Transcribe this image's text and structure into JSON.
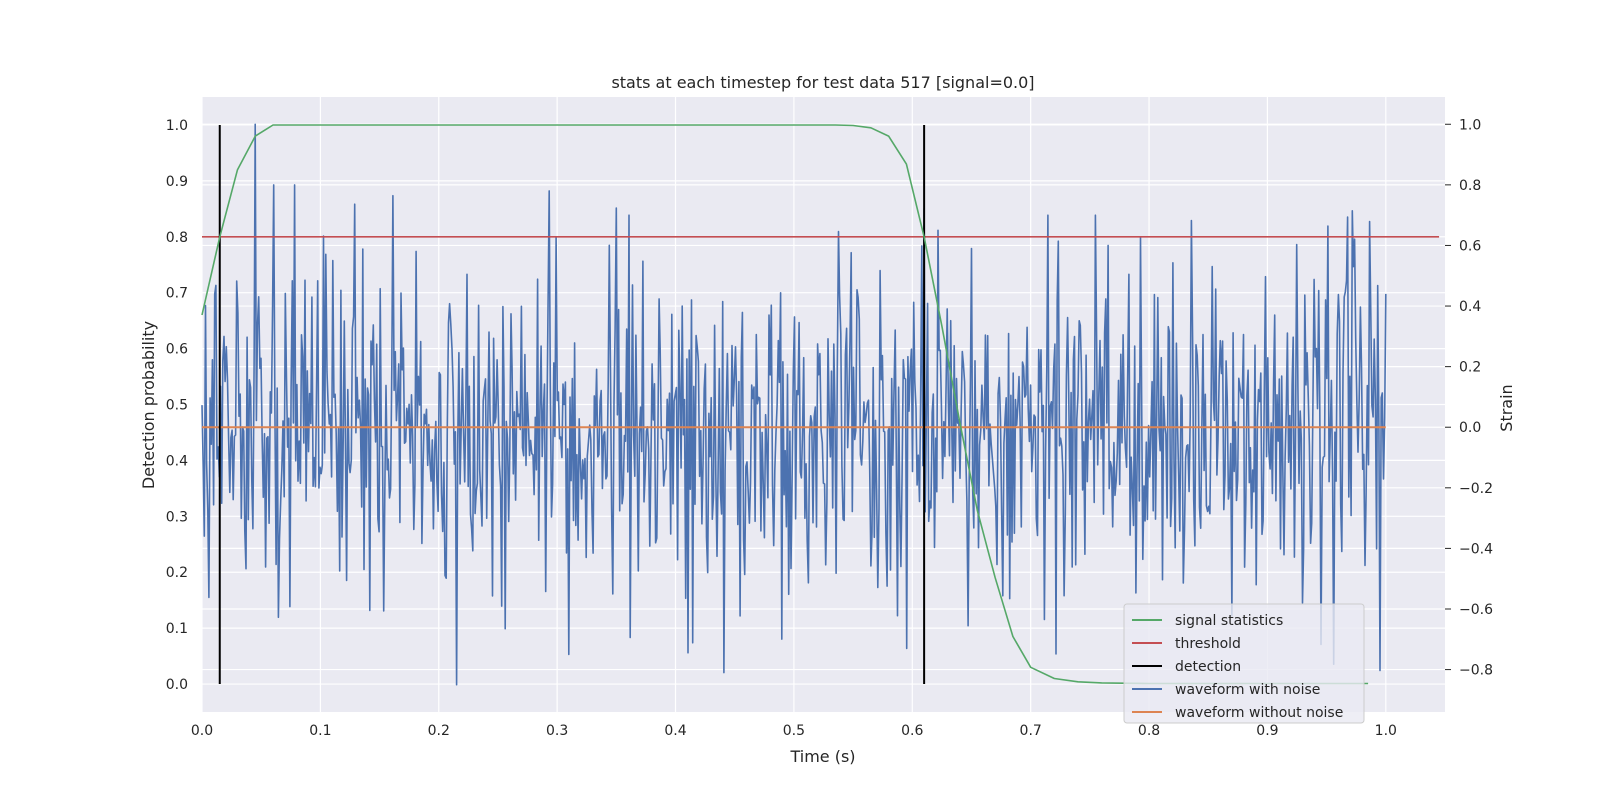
{
  "chart_data": {
    "type": "line",
    "title": "stats at each timestep for test data 517 [signal=0.0]",
    "xlabel": "Time (s)",
    "ylabel": "Detection probability",
    "ylabel_right": "Strain",
    "xlim": [
      0.0,
      1.05
    ],
    "ylim": [
      -0.05,
      1.05
    ],
    "ylim_right": [
      -0.94,
      1.09
    ],
    "xticks": [
      "0.0",
      "0.1",
      "0.2",
      "0.3",
      "0.4",
      "0.5",
      "0.6",
      "0.7",
      "0.8",
      "0.9",
      "1.0"
    ],
    "yticks": [
      "0.0",
      "0.1",
      "0.2",
      "0.3",
      "0.4",
      "0.5",
      "0.6",
      "0.7",
      "0.8",
      "0.9",
      "1.0"
    ],
    "yticks_right": [
      "−0.8",
      "−0.6",
      "−0.4",
      "−0.2",
      "0.0",
      "0.2",
      "0.4",
      "0.6",
      "0.8",
      "1.0"
    ],
    "grid": true,
    "legend_position": "lower-right",
    "series": [
      {
        "name": "signal statistics",
        "color": "#55a868",
        "axis": "left",
        "x": [
          0.0,
          0.015,
          0.03,
          0.045,
          0.06,
          0.075,
          0.1,
          0.2,
          0.3,
          0.4,
          0.5,
          0.535,
          0.55,
          0.565,
          0.58,
          0.595,
          0.61,
          0.625,
          0.64,
          0.655,
          0.67,
          0.685,
          0.7,
          0.72,
          0.74,
          0.76,
          0.8,
          0.9,
          0.985
        ],
        "y": [
          0.66,
          0.8,
          0.92,
          0.98,
          1.0,
          1.0,
          1.0,
          1.0,
          1.0,
          1.0,
          1.0,
          1.0,
          0.999,
          0.995,
          0.98,
          0.93,
          0.8,
          0.64,
          0.47,
          0.31,
          0.19,
          0.085,
          0.03,
          0.01,
          0.004,
          0.002,
          0.001,
          0.001,
          0.001
        ]
      },
      {
        "name": "threshold",
        "color": "#c44e52",
        "axis": "left",
        "x": [
          0.0,
          1.045
        ],
        "y": [
          0.8,
          0.8
        ]
      },
      {
        "name": "detection",
        "color": "#000000",
        "axis": "left",
        "x": [
          0.015,
          0.61
        ],
        "y_range": [
          0.0,
          1.0
        ]
      },
      {
        "name": "waveform with noise",
        "color": "#4c72b0",
        "axis": "right",
        "x_range": [
          0.0,
          1.0
        ],
        "points": 1024,
        "amplitude": 0.27,
        "samples": [
          {
            "x": 0.045,
            "y": 1.0
          },
          {
            "x": 0.061,
            "y": 0.8
          },
          {
            "x": 0.078,
            "y": 0.8
          },
          {
            "x": 0.11,
            "y": 0.55
          },
          {
            "x": 0.215,
            "y": -0.85
          },
          {
            "x": 0.293,
            "y": 0.78
          },
          {
            "x": 0.31,
            "y": -0.75
          },
          {
            "x": 0.441,
            "y": -0.81
          },
          {
            "x": 0.595,
            "y": -0.73
          },
          {
            "x": 0.622,
            "y": 0.65
          },
          {
            "x": 0.715,
            "y": 0.7
          },
          {
            "x": 0.755,
            "y": 0.7
          },
          {
            "x": 0.93,
            "y": -0.58
          },
          {
            "x": 1.0,
            "y": 0.44
          }
        ]
      },
      {
        "name": "waveform without noise",
        "color": "#dd8452",
        "axis": "right",
        "x": [
          0.0,
          1.0
        ],
        "y": [
          0.0,
          0.0
        ]
      }
    ]
  },
  "legend": {
    "items": [
      {
        "label": "signal statistics",
        "color": "#55a868"
      },
      {
        "label": "threshold",
        "color": "#c44e52"
      },
      {
        "label": "detection",
        "color": "#000000"
      },
      {
        "label": "waveform with noise",
        "color": "#4c72b0"
      },
      {
        "label": "waveform without noise",
        "color": "#dd8452"
      }
    ]
  },
  "colors": {
    "plot_background": "#eaeaf2",
    "grid": "#ffffff",
    "text": "#262626"
  }
}
